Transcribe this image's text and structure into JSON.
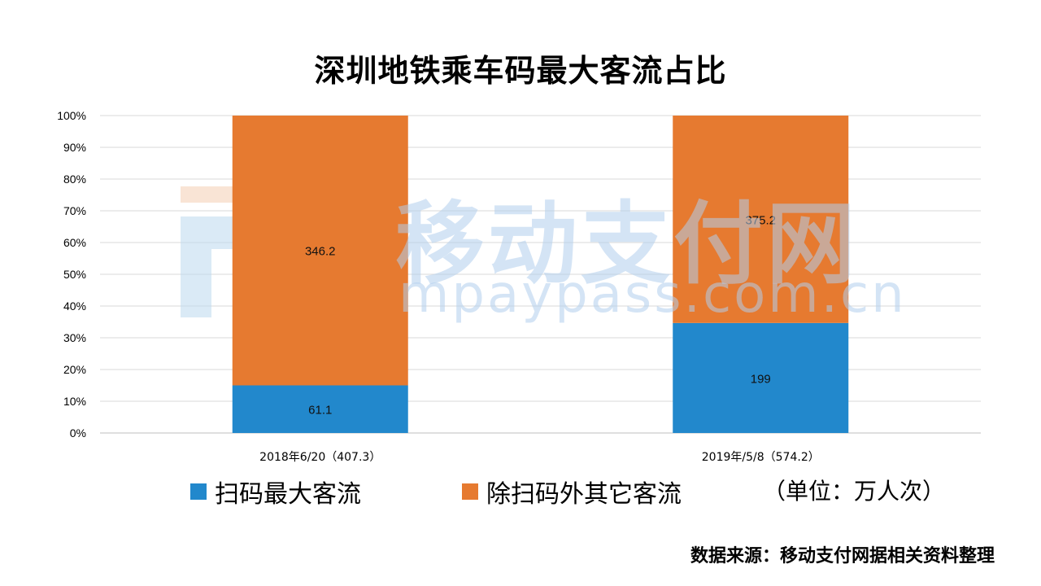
{
  "title": "深圳地铁乘车码最大客流占比",
  "watermark": {
    "cn": "移动支付网",
    "en": "mpaypass.com.cn"
  },
  "legend": [
    {
      "label": "扫码最大客流",
      "color": "#2288cc"
    },
    {
      "label": "除扫码外其它客流",
      "color": "#e67a30"
    }
  ],
  "unit_note": "（单位：万人次）",
  "source_note": "数据来源：移动支付网据相关资料整理",
  "chart_data": {
    "type": "bar",
    "stacked": "percent",
    "categories": [
      "2018年6/20（407.3）",
      "2019年/5/8（574.2）"
    ],
    "series": [
      {
        "name": "扫码最大客流",
        "values": [
          61.1,
          199
        ],
        "color": "#2288cc"
      },
      {
        "name": "除扫码外其它客流",
        "values": [
          346.2,
          375.2
        ],
        "color": "#e67a30"
      }
    ],
    "y_ticks": [
      "0%",
      "10%",
      "20%",
      "30%",
      "40%",
      "50%",
      "60%",
      "70%",
      "80%",
      "90%",
      "100%"
    ],
    "ylim": [
      0,
      100
    ],
    "grid": true,
    "legend_position": "bottom"
  }
}
